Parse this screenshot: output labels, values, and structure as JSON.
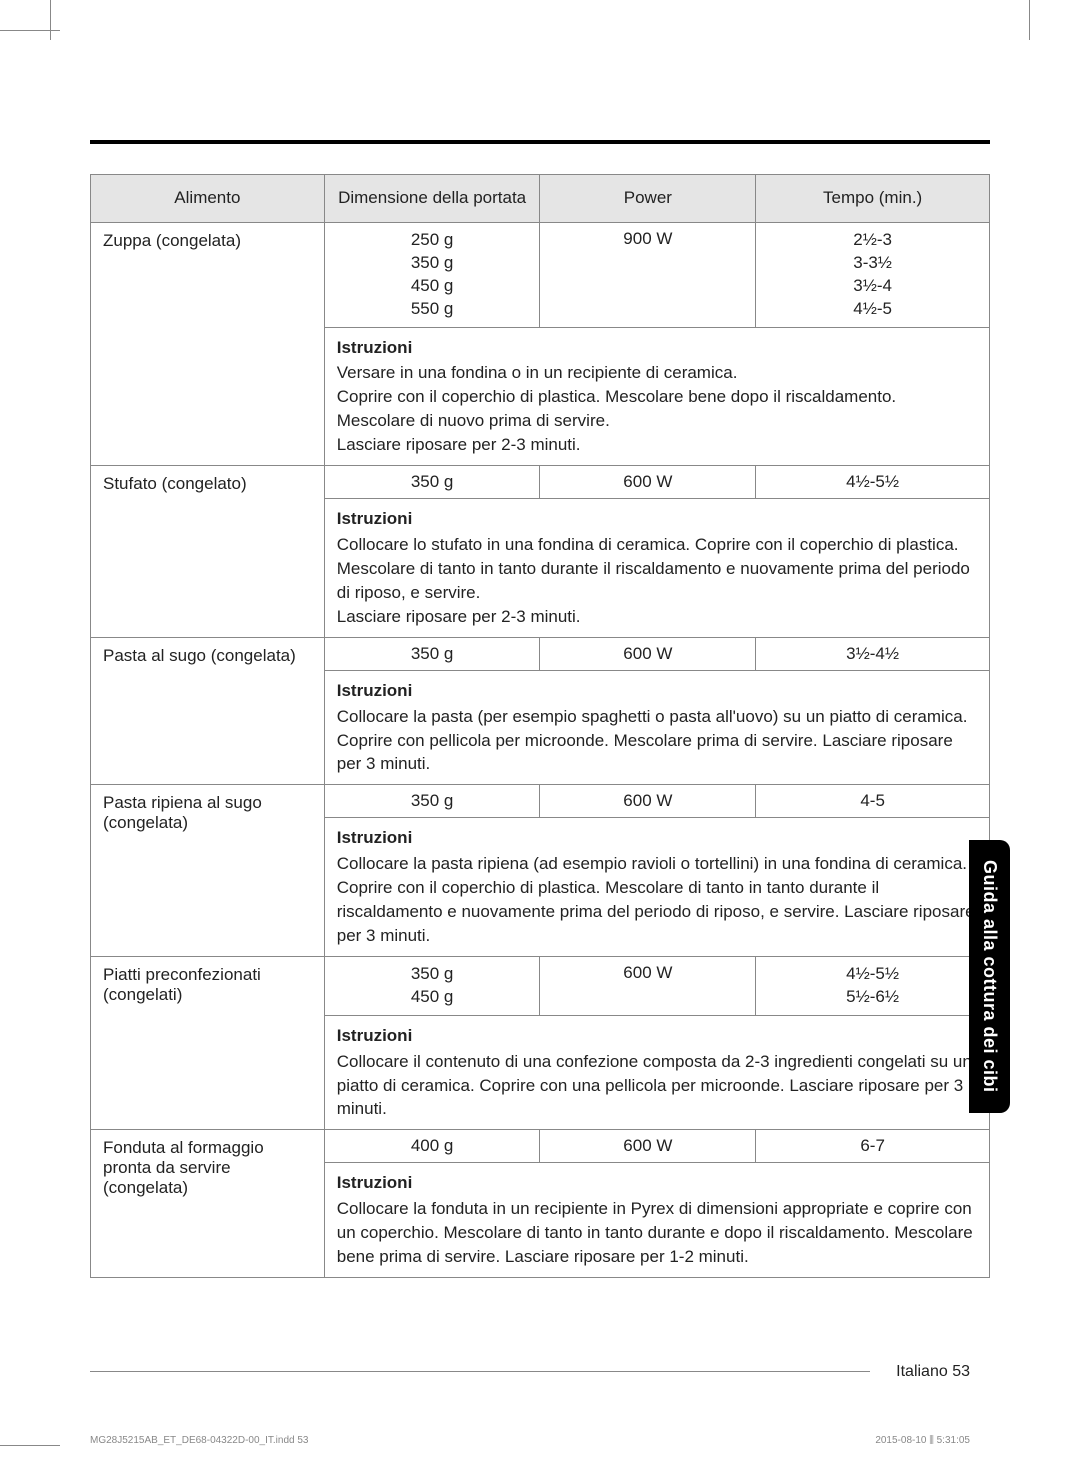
{
  "header": {
    "columns": [
      "Alimento",
      "Dimensione della portata",
      "Power",
      "Tempo (min.)"
    ]
  },
  "rows": [
    {
      "food": "Zuppa (congelata)",
      "portions": "250 g\n350 g\n450 g\n550 g",
      "power": "900 W",
      "time": "2½-3\n3-3½\n3½-4\n4½-5",
      "instruction_label": "Istruzioni",
      "instruction": "Versare in una fondina o in un recipiente di ceramica.\nCoprire con il coperchio di plastica. Mescolare bene dopo il riscaldamento. Mescolare di nuovo prima di servire.\nLasciare riposare per 2-3 minuti."
    },
    {
      "food": "Stufato (congelato)",
      "portions": "350 g",
      "power": "600 W",
      "time": "4½-5½",
      "instruction_label": "Istruzioni",
      "instruction": "Collocare lo stufato in una fondina di ceramica. Coprire con il coperchio di plastica.\nMescolare di tanto in tanto durante il riscaldamento e nuovamente prima del periodo di riposo, e servire.\nLasciare riposare per 2-3 minuti."
    },
    {
      "food": "Pasta al sugo (congelata)",
      "portions": "350 g",
      "power": "600 W",
      "time": "3½-4½",
      "instruction_label": "Istruzioni",
      "instruction": "Collocare la pasta (per esempio spaghetti o pasta all'uovo) su un piatto di ceramica. Coprire con pellicola per microonde. Mescolare prima di servire. Lasciare riposare per 3 minuti."
    },
    {
      "food": "Pasta ripiena al sugo (congelata)",
      "portions": "350 g",
      "power": "600 W",
      "time": "4-5",
      "instruction_label": "Istruzioni",
      "instruction": "Collocare la pasta ripiena (ad esempio ravioli o tortellini) in una fondina di ceramica. Coprire con il coperchio di plastica. Mescolare di tanto in tanto durante il riscaldamento e nuovamente prima del periodo di riposo, e servire. Lasciare riposare per 3 minuti."
    },
    {
      "food": "Piatti preconfezionati (congelati)",
      "portions": "350 g\n450 g",
      "power": "600 W",
      "time": "4½-5½\n5½-6½",
      "instruction_label": "Istruzioni",
      "instruction": "Collocare il contenuto di una confezione composta da 2-3 ingredienti congelati su un piatto di ceramica. Coprire con una pellicola per microonde. Lasciare riposare per 3 minuti."
    },
    {
      "food": "Fonduta al formaggio pronta da servire (congelata)",
      "portions": "400 g",
      "power": "600 W",
      "time": "6-7",
      "instruction_label": "Istruzioni",
      "instruction": "Collocare la fonduta in un recipiente in Pyrex di dimensioni appropriate e coprire con un coperchio. Mescolare di tanto in tanto durante e dopo il riscaldamento. Mescolare bene prima di servire. Lasciare riposare per 1-2 minuti."
    }
  ],
  "sideTab": "Guida alla cottura dei cibi",
  "footer": {
    "pageLabel": "Italiano 53"
  },
  "printInfo": {
    "file": "MG28J5215AB_ET_DE68-04322D-00_IT.indd   53",
    "time": "2015-08-10   ⫼ 5:31:05"
  }
}
